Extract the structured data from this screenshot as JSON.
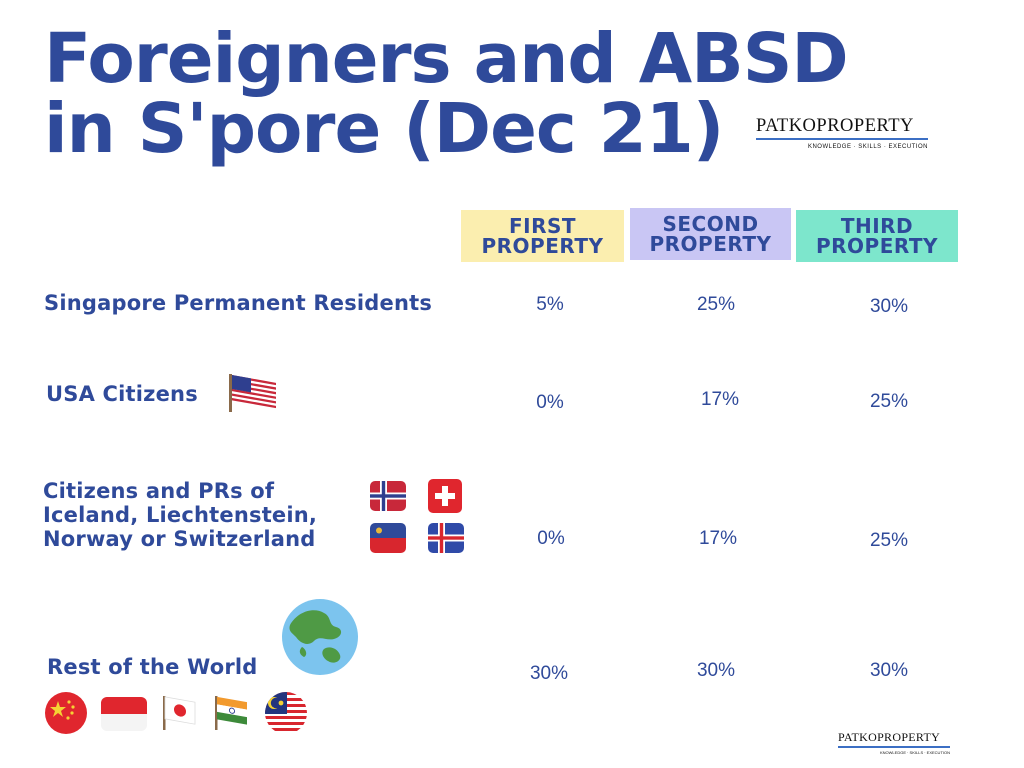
{
  "title": "Foreigners and ABSD in S'pore (Dec 21)",
  "brand": {
    "name": "PATKOPROPERTY",
    "tagline": "KNOWLEDGE · SKILLS · EXECUTION"
  },
  "columns": [
    "FIRST PROPERTY",
    "SECOND PROPERTY",
    "THIRD PROPERTY"
  ],
  "column_colors": [
    "#fbeeaf",
    "#c9c6f4",
    "#7de6cc"
  ],
  "rows": [
    {
      "label": "Singapore Permanent Residents",
      "values": [
        "5%",
        "25%",
        "30%"
      ]
    },
    {
      "label": "USA Citizens",
      "values": [
        "0%",
        "17%",
        "25%"
      ]
    },
    {
      "label_lines": [
        "Citizens and PRs of",
        "Iceland, Liechtenstein,",
        "Norway or Switzerland"
      ],
      "values": [
        "0%",
        "17%",
        "25%"
      ]
    },
    {
      "label": "Rest of the World",
      "values": [
        "30%",
        "30%",
        "30%"
      ]
    }
  ],
  "icons": {
    "usa": "usa-flag-icon",
    "efta": [
      "norway-flag-icon",
      "switzerland-flag-icon",
      "liechtenstein-flag-icon",
      "iceland-flag-icon"
    ],
    "world": "globe-icon",
    "rest": [
      "china-flag-icon",
      "indonesia-flag-icon",
      "japan-flag-icon",
      "india-flag-icon",
      "malaysia-flag-icon"
    ]
  },
  "colors": {
    "text": "#2f4a9a",
    "brand_rule": "#3c6fc4"
  }
}
